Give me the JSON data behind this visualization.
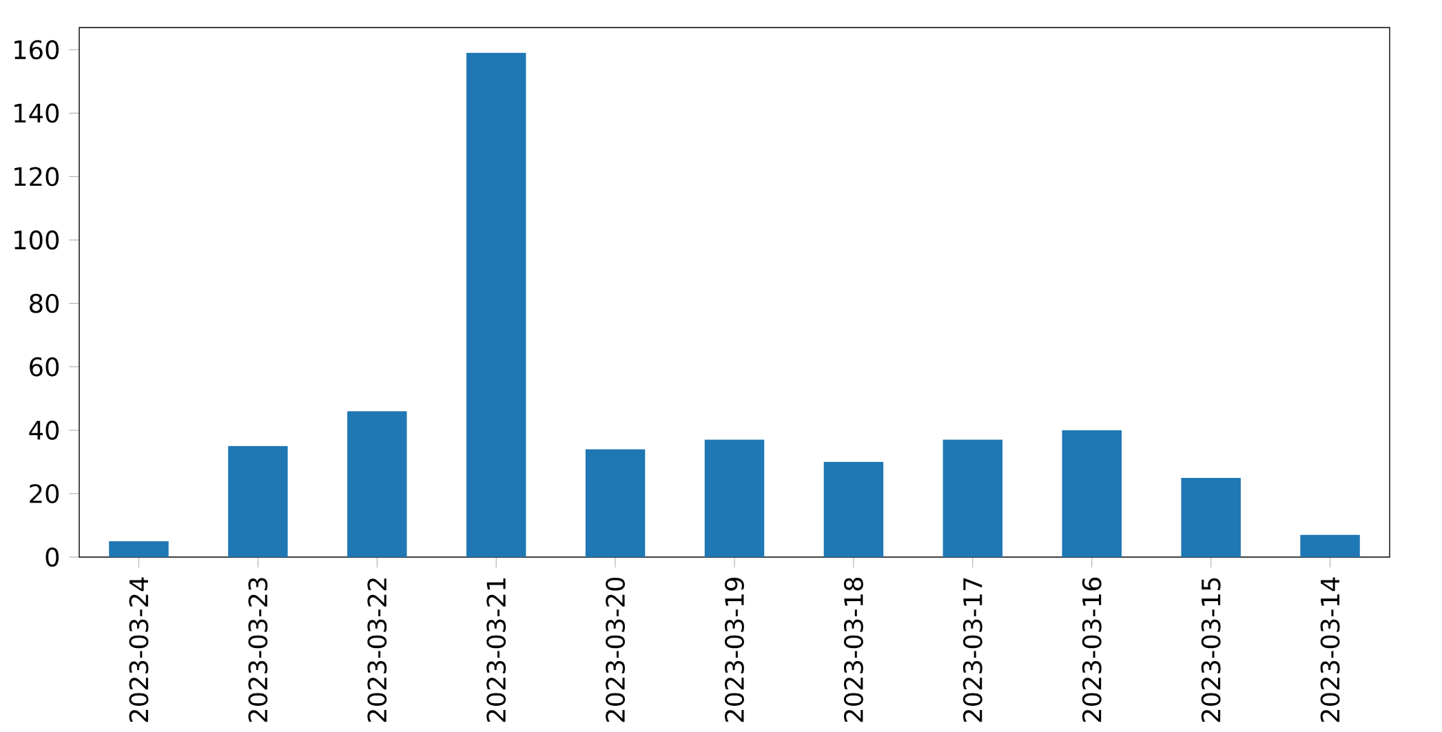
{
  "chart_data": {
    "type": "bar",
    "categories": [
      "2023-03-24",
      "2023-03-23",
      "2023-03-22",
      "2023-03-21",
      "2023-03-20",
      "2023-03-19",
      "2023-03-18",
      "2023-03-17",
      "2023-03-16",
      "2023-03-15",
      "2023-03-14"
    ],
    "values": [
      5,
      35,
      46,
      159,
      34,
      37,
      30,
      37,
      40,
      25,
      7
    ],
    "color": "#1f77b4",
    "ylim": [
      0,
      167
    ],
    "yticks": [
      0,
      20,
      40,
      60,
      80,
      100,
      120,
      140,
      160
    ]
  }
}
